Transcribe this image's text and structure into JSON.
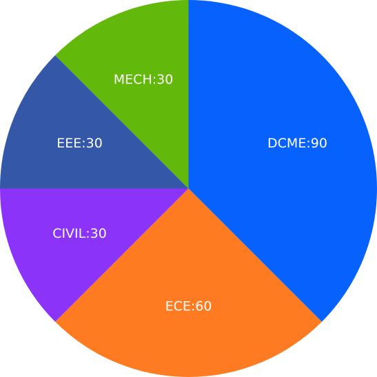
{
  "chart_data": {
    "type": "pie",
    "title": "",
    "slices": [
      {
        "category": "DCME",
        "value": 90,
        "label": "DCME:90",
        "color": "#0761FC"
      },
      {
        "category": "ECE",
        "value": 60,
        "label": "ECE:60",
        "color": "#FF7B22"
      },
      {
        "category": "CIVIL",
        "value": 30,
        "label": "CIVIL:30",
        "color": "#8C33FA"
      },
      {
        "category": "EEE",
        "value": 30,
        "label": "EEE:30",
        "color": "#3458A7"
      },
      {
        "category": "MECH",
        "value": 30,
        "label": "MECH:30",
        "color": "#63B90B"
      }
    ],
    "start_angle": "12 o'clock",
    "direction": "clockwise",
    "legend": "none"
  }
}
